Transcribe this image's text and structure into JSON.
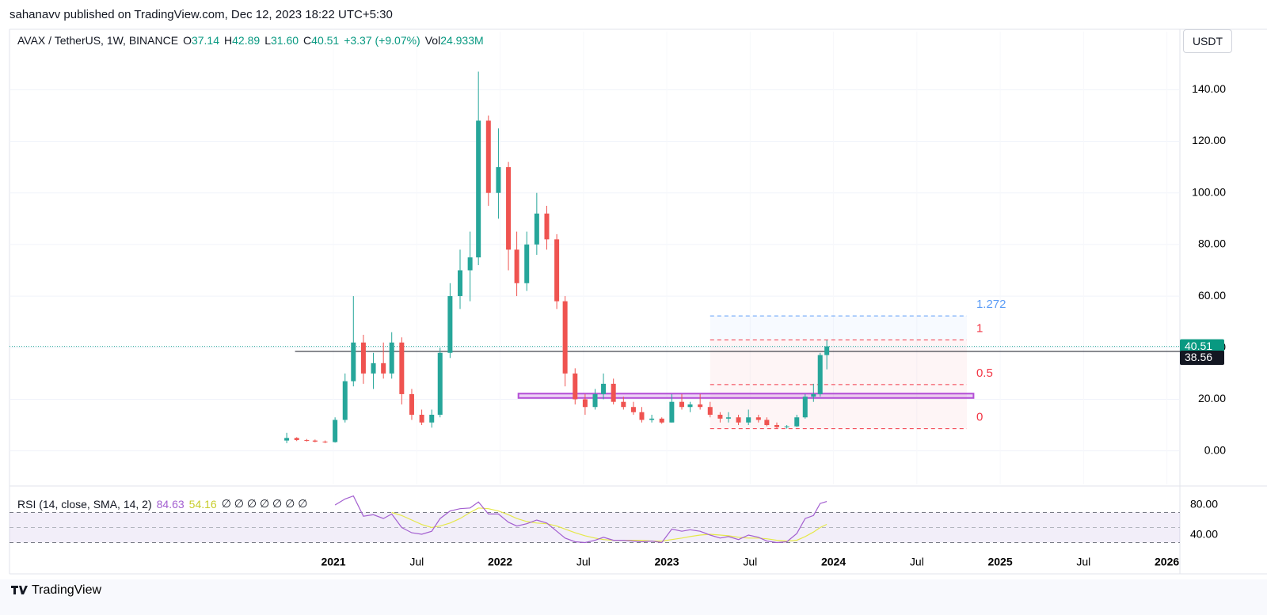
{
  "page": {
    "published": "sahanavv published on TradingView.com, Dec 12, 2023 18:22 UTC+5:30",
    "brand": "TradingView",
    "currency": "USDT"
  },
  "chart_data": {
    "type": "candlestick",
    "symbol": "AVAX / TetherUS, 1W, BINANCE",
    "ohlc_legend": [
      {
        "label": "O",
        "value": "37.14"
      },
      {
        "label": "H",
        "value": "42.89"
      },
      {
        "label": "L",
        "value": "31.60"
      },
      {
        "label": "C",
        "value": "40.51"
      }
    ],
    "change": "+3.37 (+9.07%)",
    "volume_label": "Vol",
    "volume": "24.933M",
    "up_color": "#26a69a",
    "down_color": "#ef5350",
    "x": [
      2020.72,
      2020.78,
      2020.84,
      2020.89,
      2020.95,
      2021.01,
      2021.07,
      2021.12,
      2021.18,
      2021.24,
      2021.3,
      2021.35,
      2021.41,
      2021.47,
      2021.53,
      2021.59,
      2021.64,
      2021.7,
      2021.76,
      2021.82,
      2021.87,
      2021.93,
      2021.99,
      2022.05,
      2022.1,
      2022.16,
      2022.22,
      2022.28,
      2022.34,
      2022.39,
      2022.45,
      2022.51,
      2022.57,
      2022.62,
      2022.68,
      2022.74,
      2022.8,
      2022.85,
      2022.91,
      2022.97,
      2023.03,
      2023.09,
      2023.14,
      2023.2,
      2023.26,
      2023.32,
      2023.37,
      2023.43,
      2023.49,
      2023.55,
      2023.6,
      2023.66,
      2023.72,
      2023.78,
      2023.83,
      2023.88,
      2023.92,
      2023.96
    ],
    "open": [
      4,
      5,
      4.2,
      4,
      3.6,
      3.4,
      12,
      27,
      42,
      30,
      34,
      30,
      42,
      22,
      14,
      11,
      14,
      38,
      60,
      70,
      75,
      128,
      100,
      110,
      78,
      65,
      80,
      92,
      82,
      58,
      30,
      20,
      17,
      22,
      26,
      19,
      17,
      15,
      12,
      12.5,
      11,
      19,
      17,
      18,
      17,
      14,
      12.5,
      13,
      11,
      13,
      12,
      10,
      9.2,
      9.5,
      13,
      21,
      22,
      37.14
    ],
    "high": [
      7,
      5.3,
      4.6,
      4.4,
      4,
      13,
      30,
      60,
      45,
      38,
      42,
      46,
      44,
      24,
      16,
      16,
      40,
      65,
      78,
      85,
      147,
      130,
      125,
      112,
      85,
      85,
      100,
      95,
      84,
      60,
      32,
      22,
      24,
      30,
      28,
      21,
      19,
      17,
      14,
      13,
      22,
      22,
      19,
      22,
      19,
      15,
      15,
      14,
      16,
      14,
      13,
      11,
      10,
      14,
      22,
      26,
      38,
      42.89
    ],
    "low": [
      3,
      3.8,
      3.6,
      3.3,
      3,
      3.2,
      11,
      25,
      26,
      24,
      28,
      28,
      18,
      12,
      10,
      9,
      13,
      36,
      55,
      58,
      72,
      95,
      90,
      70,
      60,
      62,
      76,
      78,
      55,
      25,
      18,
      14,
      16,
      20,
      18,
      16,
      14,
      11,
      11,
      10.5,
      11,
      16,
      15,
      16,
      13,
      11,
      11,
      10,
      10,
      11,
      9.5,
      8.8,
      8.6,
      9.2,
      12.5,
      19,
      21,
      31.6
    ],
    "close": [
      5,
      4.2,
      4,
      3.6,
      3.4,
      12,
      27,
      42,
      30,
      34,
      30,
      42,
      22,
      14,
      11,
      14,
      38,
      60,
      70,
      75,
      128,
      100,
      110,
      78,
      65,
      80,
      92,
      82,
      58,
      30,
      20,
      17,
      22,
      26,
      19,
      17,
      15,
      12,
      12.5,
      11,
      19,
      17,
      18,
      17,
      14,
      12.5,
      13,
      11,
      13,
      12,
      10,
      9.2,
      9.5,
      13,
      21,
      22,
      37.14,
      40.51
    ],
    "xlim": [
      2019.057,
      2026.078
    ],
    "xticks": [
      2021,
      {
        "value": 2021.5,
        "label": "Jul"
      },
      2022,
      {
        "value": 2022.5,
        "label": "Jul"
      },
      2023,
      {
        "value": 2023.5,
        "label": "Jul"
      },
      2024,
      {
        "value": 2024.5,
        "label": "Jul"
      },
      2025,
      {
        "value": 2025.5,
        "label": "Jul"
      },
      2026
    ],
    "ylim": [
      -13,
      162.5
    ],
    "yticks": [
      {
        "value": 0,
        "label": "0.00"
      },
      {
        "value": 20,
        "label": "20.00"
      },
      {
        "value": 40,
        "label": "40.00"
      },
      {
        "value": 60,
        "label": "60.00"
      },
      {
        "value": 80,
        "label": "80.00"
      },
      {
        "value": 100,
        "label": "100.00"
      },
      {
        "value": 120,
        "label": "120.00"
      },
      {
        "value": 140,
        "label": "140.00"
      }
    ],
    "grid": true,
    "hline": {
      "value": 38.56,
      "x_start": 2020.77,
      "color": "#131722"
    },
    "zone": {
      "x": [
        2022.11,
        2024.84
      ],
      "y": [
        20.5,
        22.2
      ],
      "color": "#b44fd6"
    },
    "fib": {
      "x": [
        2023.26,
        2024.8
      ],
      "levels": [
        0,
        0.5,
        1,
        1.272
      ],
      "prices": [
        8.6,
        25.7,
        43,
        52.3
      ],
      "colors": [
        "#f23645",
        "#f23645",
        "#f23645",
        "#5b9cf6"
      ]
    },
    "rsi": {
      "title": "RSI (14, close, SMA, 14, 2)",
      "flags": "∅ ∅ ∅ ∅ ∅ ∅ ∅",
      "color": "#a35fd0",
      "sma_color": "#e5e84a",
      "values": [
        null,
        null,
        null,
        null,
        null,
        80,
        88,
        92,
        65,
        67,
        62,
        68,
        50,
        43,
        41,
        45,
        62,
        72,
        75,
        76,
        84,
        68,
        68,
        57,
        52,
        55,
        60,
        56,
        45,
        36,
        31,
        30,
        33,
        37,
        33,
        33,
        32,
        31,
        32,
        30,
        48,
        45,
        47,
        45,
        40,
        36,
        38,
        34,
        40,
        37,
        32,
        30,
        31,
        42,
        62,
        66,
        82,
        84.63
      ],
      "sma": [
        null,
        null,
        null,
        null,
        null,
        null,
        null,
        null,
        null,
        null,
        null,
        70,
        66,
        60,
        54,
        50,
        52,
        56,
        62,
        70,
        76,
        75,
        72,
        67,
        62,
        58,
        56,
        55,
        52,
        48,
        43,
        39,
        36,
        34,
        33,
        33,
        33,
        33,
        32,
        32,
        34,
        36,
        38,
        40,
        41,
        40,
        39,
        37,
        36,
        36,
        35,
        33,
        32,
        33,
        38,
        44,
        50,
        54.16
      ],
      "ylim": [
        10.5,
        96.8
      ],
      "yticks": [
        {
          "value": 40,
          "label": "40.00"
        },
        {
          "value": 80,
          "label": "80.00"
        }
      ],
      "band": [
        30,
        70
      ],
      "midline": 50
    }
  }
}
